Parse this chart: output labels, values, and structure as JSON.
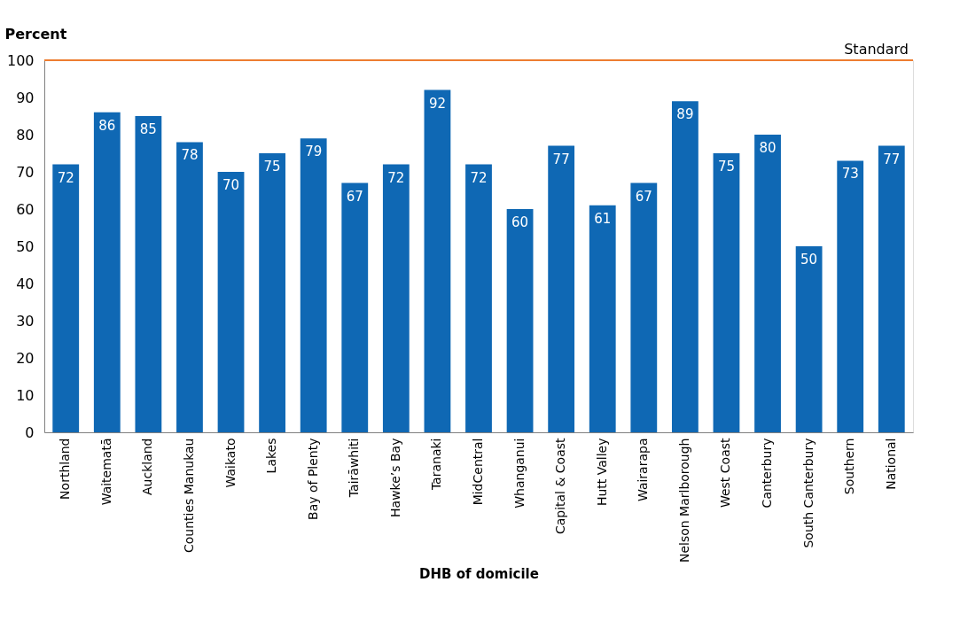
{
  "chart_data": {
    "type": "bar",
    "categories": [
      "Northland",
      "Waitematā",
      "Auckland",
      "Counties Manukau",
      "Waikato",
      "Lakes",
      "Bay of Plenty",
      "Tairāwhiti",
      "Hawke’s Bay",
      "Taranaki",
      "MidCentral",
      "Whanganui",
      "Capital & Coast",
      "Hutt Valley",
      "Wairarapa",
      "Nelson Marlborough",
      "West Coast",
      "Canterbury",
      "South Canterbury",
      "Southern",
      "National"
    ],
    "values": [
      72,
      86,
      85,
      78,
      70,
      75,
      79,
      67,
      72,
      92,
      72,
      60,
      77,
      61,
      67,
      89,
      75,
      80,
      50,
      73,
      77
    ],
    "color": "#0f68b4",
    "xlabel": "DHB of domicile",
    "ylabel": "Percent",
    "ylim": [
      0,
      100
    ],
    "yticks": [
      0,
      10,
      20,
      30,
      40,
      50,
      60,
      70,
      80,
      90,
      100
    ],
    "data_labels": true,
    "grid": false,
    "ref_lines": [
      {
        "axis": "y",
        "value": 100,
        "label": "Standard",
        "color": "#ed7d31"
      }
    ]
  }
}
